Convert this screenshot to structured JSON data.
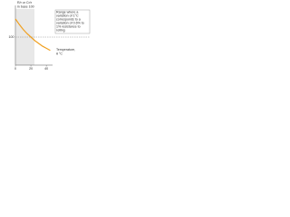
{
  "chart_data": {
    "type": "line",
    "y_label_lines": [
      "R/r or Cr/r",
      "in base 100"
    ],
    "x_label_lines": [
      "Temperature,",
      "θ °C"
    ],
    "annotation_lines": [
      "Range where a",
      "variation of 1°C",
      "corresponds to a",
      "variation of 0.6% to",
      "1% resistance to",
      "rolling"
    ],
    "x": [
      0,
      5,
      10,
      15,
      20,
      25,
      30,
      35,
      40,
      45
    ],
    "series": [
      {
        "color": "#f0a020",
        "values": [
          126,
          118,
          111,
          105,
          100,
          95,
          91,
          87,
          84,
          81
        ]
      }
    ],
    "xlim": [
      0,
      48
    ],
    "ylim": [
      60,
      140
    ],
    "xticks": [
      0,
      20,
      40
    ],
    "yticks": [
      100
    ],
    "grid": true
  }
}
